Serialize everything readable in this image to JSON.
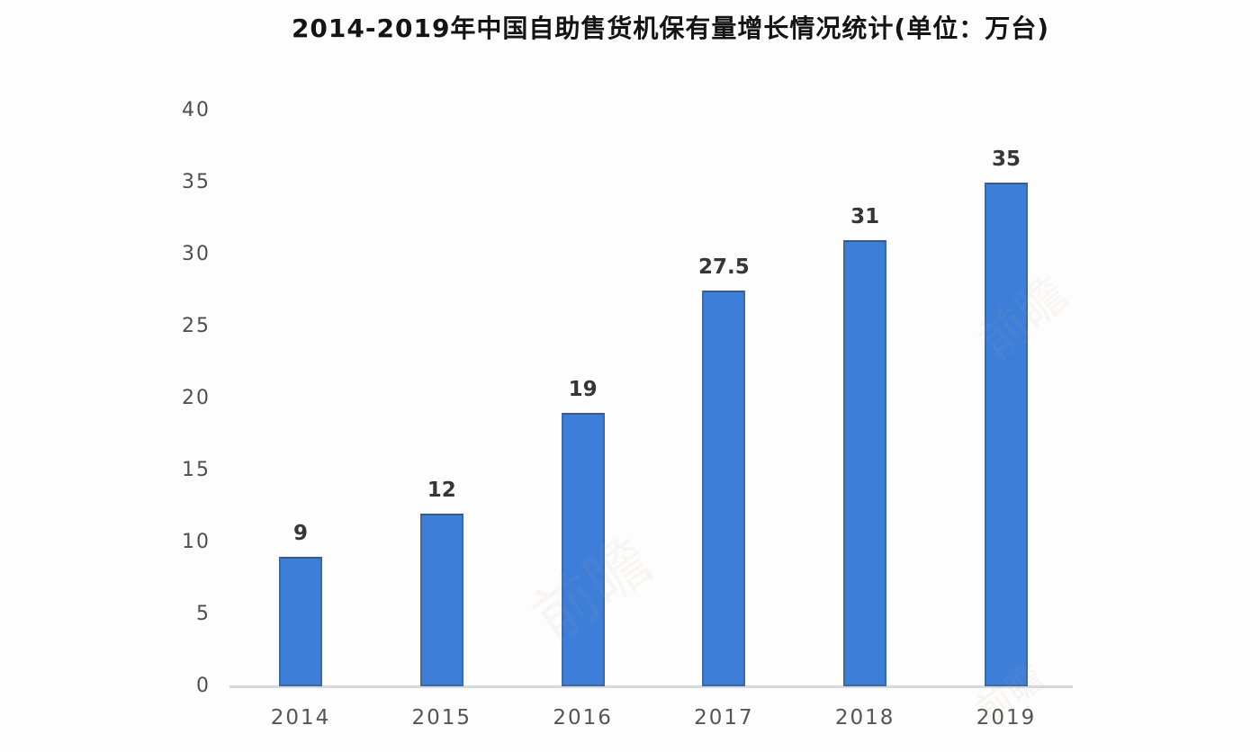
{
  "title": "2014-2019年中国自助售货机保有量增长情况统计(单位：万台)",
  "colors": {
    "bar_fill": "#3d7ed9",
    "bar_edge": "rgba(60,80,110,0.45)",
    "axis_line": "#d9d9d9",
    "y_tick_label": "#4f4f4f",
    "x_tick_label": "#555555",
    "value_label": "#363636",
    "title_text": "#141414",
    "background": "#fdfdfd",
    "watermark": "#b9ab97"
  },
  "watermarks": [
    {
      "text": "前瞻"
    },
    {
      "text": "前瞻"
    },
    {
      "text": "前瞻"
    }
  ],
  "chart_data": {
    "type": "bar",
    "title": "2014-2019年中国自助售货机保有量增长情况统计(单位：万台)",
    "categories": [
      "2014",
      "2015",
      "2016",
      "2017",
      "2018",
      "2019"
    ],
    "values": [
      9,
      12,
      19,
      27.5,
      31,
      35
    ],
    "value_labels": [
      "9",
      "12",
      "19",
      "27.5",
      "31",
      "35"
    ],
    "unit": "万台",
    "xlabel": "",
    "ylabel": "",
    "ylim": [
      0,
      40
    ],
    "yticks": [
      0,
      5,
      10,
      15,
      20,
      25,
      30,
      35,
      40
    ],
    "grid": false,
    "legend": false
  }
}
